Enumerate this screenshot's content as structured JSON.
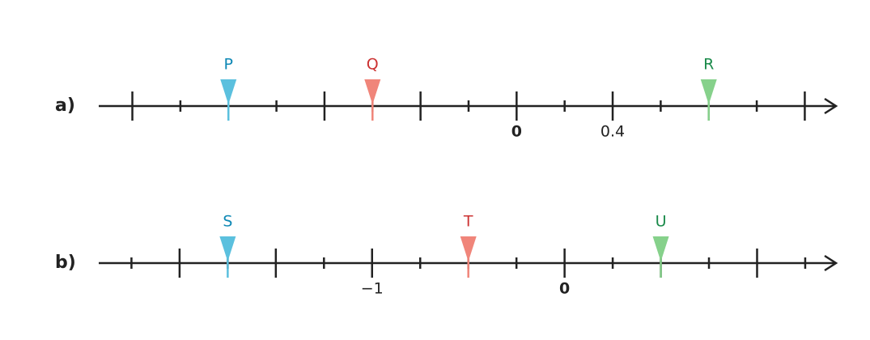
{
  "lines": [
    {
      "label": "a)",
      "xlim": [
        -1.74,
        1.33
      ],
      "xticks": [
        0,
        0.4
      ],
      "major_ticks": [
        -1.6,
        -1.2,
        -0.8,
        -0.4,
        0.8,
        1.2
      ],
      "minor_ticks": [
        -1.4,
        -1.0,
        -0.6,
        -0.2,
        0.2,
        0.6,
        1.0
      ],
      "markers": [
        {
          "name": "P",
          "value": -1.2,
          "color": "#5bc0de",
          "label_color": "#0e88b5"
        },
        {
          "name": "Q",
          "value": -0.6,
          "color": "#f0857a",
          "label_color": "#cc3333"
        },
        {
          "name": "R",
          "value": 0.8,
          "color": "#86d18b",
          "label_color": "#1a8a4a"
        }
      ]
    },
    {
      "label": "b)",
      "xlim": [
        -2.42,
        1.41
      ],
      "xticks": [
        {
          "value": -1,
          "label": "−1"
        },
        0
      ],
      "major_ticks": [
        -2,
        -1.5,
        0.5,
        1
      ],
      "minor_ticks": [
        -2.25,
        -1.75,
        -1.25,
        -0.75,
        -0.5,
        -0.25,
        0.25,
        0.75,
        1.25
      ],
      "markers": [
        {
          "name": "S",
          "value": -1.75,
          "color": "#5bc0de",
          "label_color": "#0e88b5"
        },
        {
          "name": "T",
          "value": -0.5,
          "color": "#f0857a",
          "label_color": "#cc3333"
        },
        {
          "name": "U",
          "value": 0.5,
          "color": "#86d18b",
          "label_color": "#1a8a4a"
        }
      ]
    }
  ]
}
